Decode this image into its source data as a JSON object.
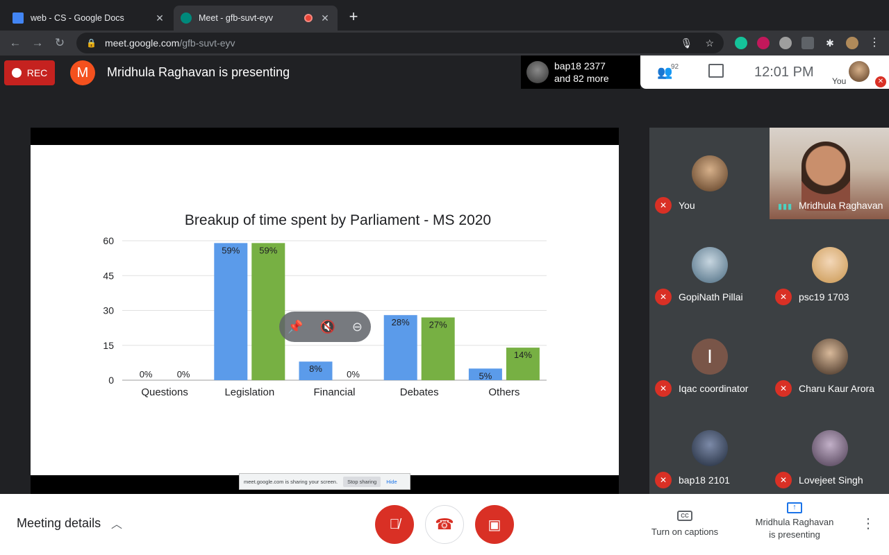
{
  "browser": {
    "tabs": [
      {
        "title": "web - CS - Google Docs",
        "close": "✕",
        "favicon_color": "#4285f4"
      },
      {
        "title": "Meet - gfb-suvt-eyv",
        "close": "✕",
        "favicon_color": "#00897b"
      }
    ],
    "new_tab": "+",
    "url_host": "meet.google.com",
    "url_path": "/gfb-suvt-eyv"
  },
  "meet": {
    "rec_label": "REC",
    "presenter_initial": "M",
    "presenting_title": "Mridhula Raghavan is presenting",
    "joiners_line1": "bap18 2377",
    "joiners_line2": "and 82 more",
    "people_count": "92",
    "time": "12:01 PM",
    "you_label": "You"
  },
  "chart_data": {
    "type": "bar",
    "title": "Breakup of time spent by Parliament - MS 2020",
    "categories": [
      "Questions",
      "Legislation",
      "Financial",
      "Debates",
      "Others"
    ],
    "series": [
      {
        "values": [
          0,
          59,
          8,
          28,
          5
        ],
        "labels": [
          "0%",
          "59%",
          "8%",
          "28%",
          "5%"
        ],
        "color": "#5b9bea"
      },
      {
        "values": [
          0,
          59,
          0,
          27,
          14
        ],
        "labels": [
          "0%",
          "59%",
          "0%",
          "27%",
          "14%"
        ],
        "color": "#77b043"
      }
    ],
    "yticks": [
      "0",
      "15",
      "30",
      "45",
      "60"
    ],
    "ylim": [
      0,
      60
    ],
    "grid": true
  },
  "share_bar": {
    "text": "meet.google.com is sharing your screen.",
    "stop": "Stop sharing",
    "hide": "Hide"
  },
  "participants": [
    {
      "name": "You",
      "avatar_color": "#b58a5a"
    },
    {
      "name": "Mridhula Raghavan",
      "video": true
    },
    {
      "name": "GopiNath Pillai",
      "avatar_color": "#6a8fa8"
    },
    {
      "name": "psc19 1703",
      "avatar_color": "#e8c39a"
    },
    {
      "name": "Iqac coordinator",
      "initial": "I",
      "avatar_color": "#795548"
    },
    {
      "name": "Charu Kaur Arora",
      "avatar_color": "#9b7a5a"
    },
    {
      "name": "bap18 2101",
      "avatar_color": "#4a5870"
    },
    {
      "name": "Lovejeet Singh",
      "avatar_color": "#8a7a90"
    }
  ],
  "bottom": {
    "meeting_details": "Meeting details",
    "captions_label": "Turn on captions",
    "captions_icon": "CC",
    "presenting_line1": "Mridhula Raghavan",
    "presenting_line2": "is presenting"
  }
}
